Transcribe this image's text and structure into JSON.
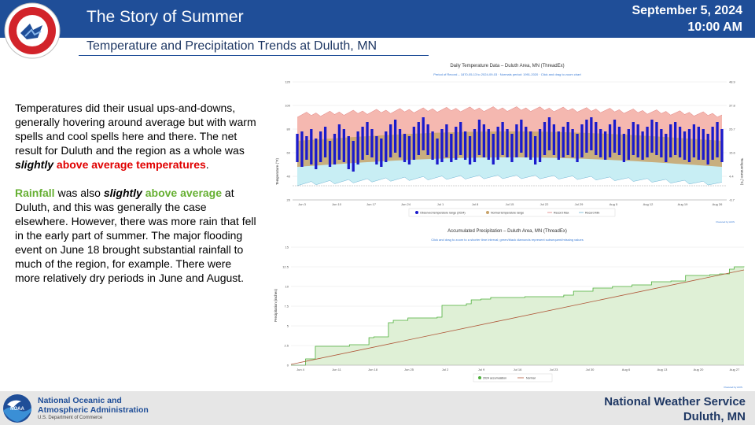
{
  "header": {
    "title": "The Story of Summer",
    "date": "September 5, 2024",
    "time": "10:00 AM",
    "subtitle": "Temperature and Precipitation Trends at Duluth, MN"
  },
  "body": {
    "p1_a": "Temperatures did their usual ups-and-downs, generally hovering around average but with warm spells and cool spells here and there. The net result for Duluth and the region as a whole was ",
    "p1_b": "slightly",
    "p1_c": " above average temperatures",
    "p1_d": ".",
    "p2_a": "Rainfall",
    "p2_b": " was also ",
    "p2_c": "slightly",
    "p2_d": " above average",
    "p2_e": " at Duluth, and this was generally the case elsewhere. However, there was more rain that fell in the early part of summer. The major flooding event on June 18 brought substantial rainfall to much of the region, for example. There were more relatively dry periods in June and August."
  },
  "footer": {
    "noaa_line1": "National Oceanic and",
    "noaa_line2": "Atmospheric Administration",
    "noaa_dept": "U.S. Department of Commerce",
    "nws_line1": "National Weather Service",
    "nws_line2": "Duluth, MN"
  },
  "colors": {
    "header_bg": "#1f4e98",
    "observed": "#1a1acc",
    "record_max": "#f5b8b0",
    "normal": "#c8a36a",
    "record_min": "#c8eef4",
    "precip_fill": "#dff0d6",
    "precip_line": "#4caf3a",
    "normal_precip": "#b0583a"
  },
  "chart_data": [
    {
      "type": "bar",
      "title": "Daily Temperature Data – Duluth Area, MN (ThreadEx)",
      "subtitle": "Period of Record – 1870-05-13 to 2024-09-03 · Normals period: 1991-2020 · Click and drag to zoom chart",
      "ylabel": "Temperature (°F)",
      "y2label": "Temperature (°C)",
      "ylim": [
        20,
        120
      ],
      "yticks": [
        "120",
        "100",
        "80",
        "60",
        "40",
        "20"
      ],
      "y2ticks": [
        "48.9",
        "37.8",
        "26.7",
        "15.6",
        "4.4",
        "-6.7"
      ],
      "xticks": [
        "Jun 3",
        "Jun 10",
        "Jun 17",
        "Jun 24",
        "Jul 1",
        "Jul 8",
        "Jul 15",
        "Jul 22",
        "Jul 29",
        "Aug 5",
        "Aug 12",
        "Aug 19",
        "Aug 26"
      ],
      "legend": [
        "Observed temperature range (2024)",
        "Normal temperature range",
        "Record Max",
        "Record Min"
      ],
      "credit": "Powered by ACIS",
      "observed_high": [
        76,
        78,
        74,
        80,
        72,
        78,
        82,
        70,
        76,
        84,
        80,
        74,
        70,
        78,
        82,
        86,
        80,
        74,
        72,
        78,
        84,
        88,
        80,
        76,
        74,
        82,
        86,
        90,
        84,
        78,
        72,
        80,
        84,
        76,
        82,
        86,
        78,
        74,
        80,
        88,
        84,
        80,
        76,
        82,
        86,
        80,
        76,
        84,
        88,
        82,
        78,
        74,
        80,
        86,
        90,
        84,
        78,
        82,
        86,
        80,
        76,
        84,
        88,
        90,
        86,
        80,
        78,
        84,
        88,
        82,
        76,
        80,
        86,
        84,
        78,
        82,
        88,
        86,
        80,
        76,
        84,
        86,
        82,
        78,
        80,
        84,
        82,
        80,
        76,
        82,
        86,
        80
      ],
      "observed_low": [
        52,
        48,
        54,
        50,
        46,
        52,
        56,
        48,
        50,
        54,
        52,
        46,
        44,
        50,
        54,
        58,
        56,
        50,
        48,
        52,
        56,
        60,
        56,
        52,
        50,
        54,
        58,
        62,
        58,
        54,
        50,
        52,
        56,
        52,
        54,
        58,
        54,
        50,
        52,
        58,
        56,
        54,
        50,
        54,
        58,
        56,
        52,
        56,
        60,
        56,
        54,
        50,
        52,
        58,
        62,
        58,
        54,
        56,
        58,
        56,
        52,
        56,
        60,
        62,
        58,
        56,
        54,
        56,
        60,
        58,
        52,
        54,
        58,
        56,
        54,
        56,
        60,
        58,
        56,
        52,
        56,
        58,
        56,
        54,
        52,
        56,
        54,
        54,
        50,
        54,
        56,
        52
      ]
    },
    {
      "type": "area",
      "title": "Accumulated Precipitation – Duluth Area, MN (ThreadEx)",
      "subtitle": "Click and drag to zoom to a shorter time interval; green/black diamonds represent subsequent/missing values",
      "ylabel": "Precipitation (inches)",
      "ylim": [
        0,
        15
      ],
      "yticks": [
        "15",
        "12.5",
        "10",
        "7.5",
        "5",
        "2.5",
        "0"
      ],
      "xticks": [
        "Jun 4",
        "Jun 11",
        "Jun 18",
        "Jun 25",
        "Jul 2",
        "Jul 9",
        "Jul 16",
        "Jul 23",
        "Jul 30",
        "Aug 6",
        "Aug 13",
        "Aug 20",
        "Aug 27"
      ],
      "legend": [
        "2024 accumulation",
        "Normal"
      ],
      "credit": "Powered by ACIS",
      "accum_2024": [
        [
          0,
          0
        ],
        [
          3,
          0.8
        ],
        [
          5,
          2.4
        ],
        [
          12,
          2.6
        ],
        [
          16,
          3.5
        ],
        [
          17,
          3.6
        ],
        [
          20,
          5.4
        ],
        [
          21,
          5.7
        ],
        [
          24,
          6.0
        ],
        [
          30,
          6.1
        ],
        [
          31,
          7.6
        ],
        [
          36,
          7.8
        ],
        [
          37,
          8.3
        ],
        [
          39,
          8.4
        ],
        [
          41,
          8.6
        ],
        [
          48,
          8.7
        ],
        [
          56,
          8.9
        ],
        [
          58,
          9.4
        ],
        [
          62,
          9.8
        ],
        [
          66,
          10.0
        ],
        [
          70,
          10.2
        ],
        [
          74,
          10.6
        ],
        [
          78,
          10.7
        ],
        [
          81,
          11.4
        ],
        [
          86,
          11.5
        ],
        [
          88,
          11.6
        ],
        [
          90,
          12.2
        ],
        [
          91,
          12.5
        ],
        [
          93,
          12.55
        ]
      ],
      "normal": [
        [
          0,
          0.1
        ],
        [
          93,
          12.1
        ]
      ]
    }
  ]
}
